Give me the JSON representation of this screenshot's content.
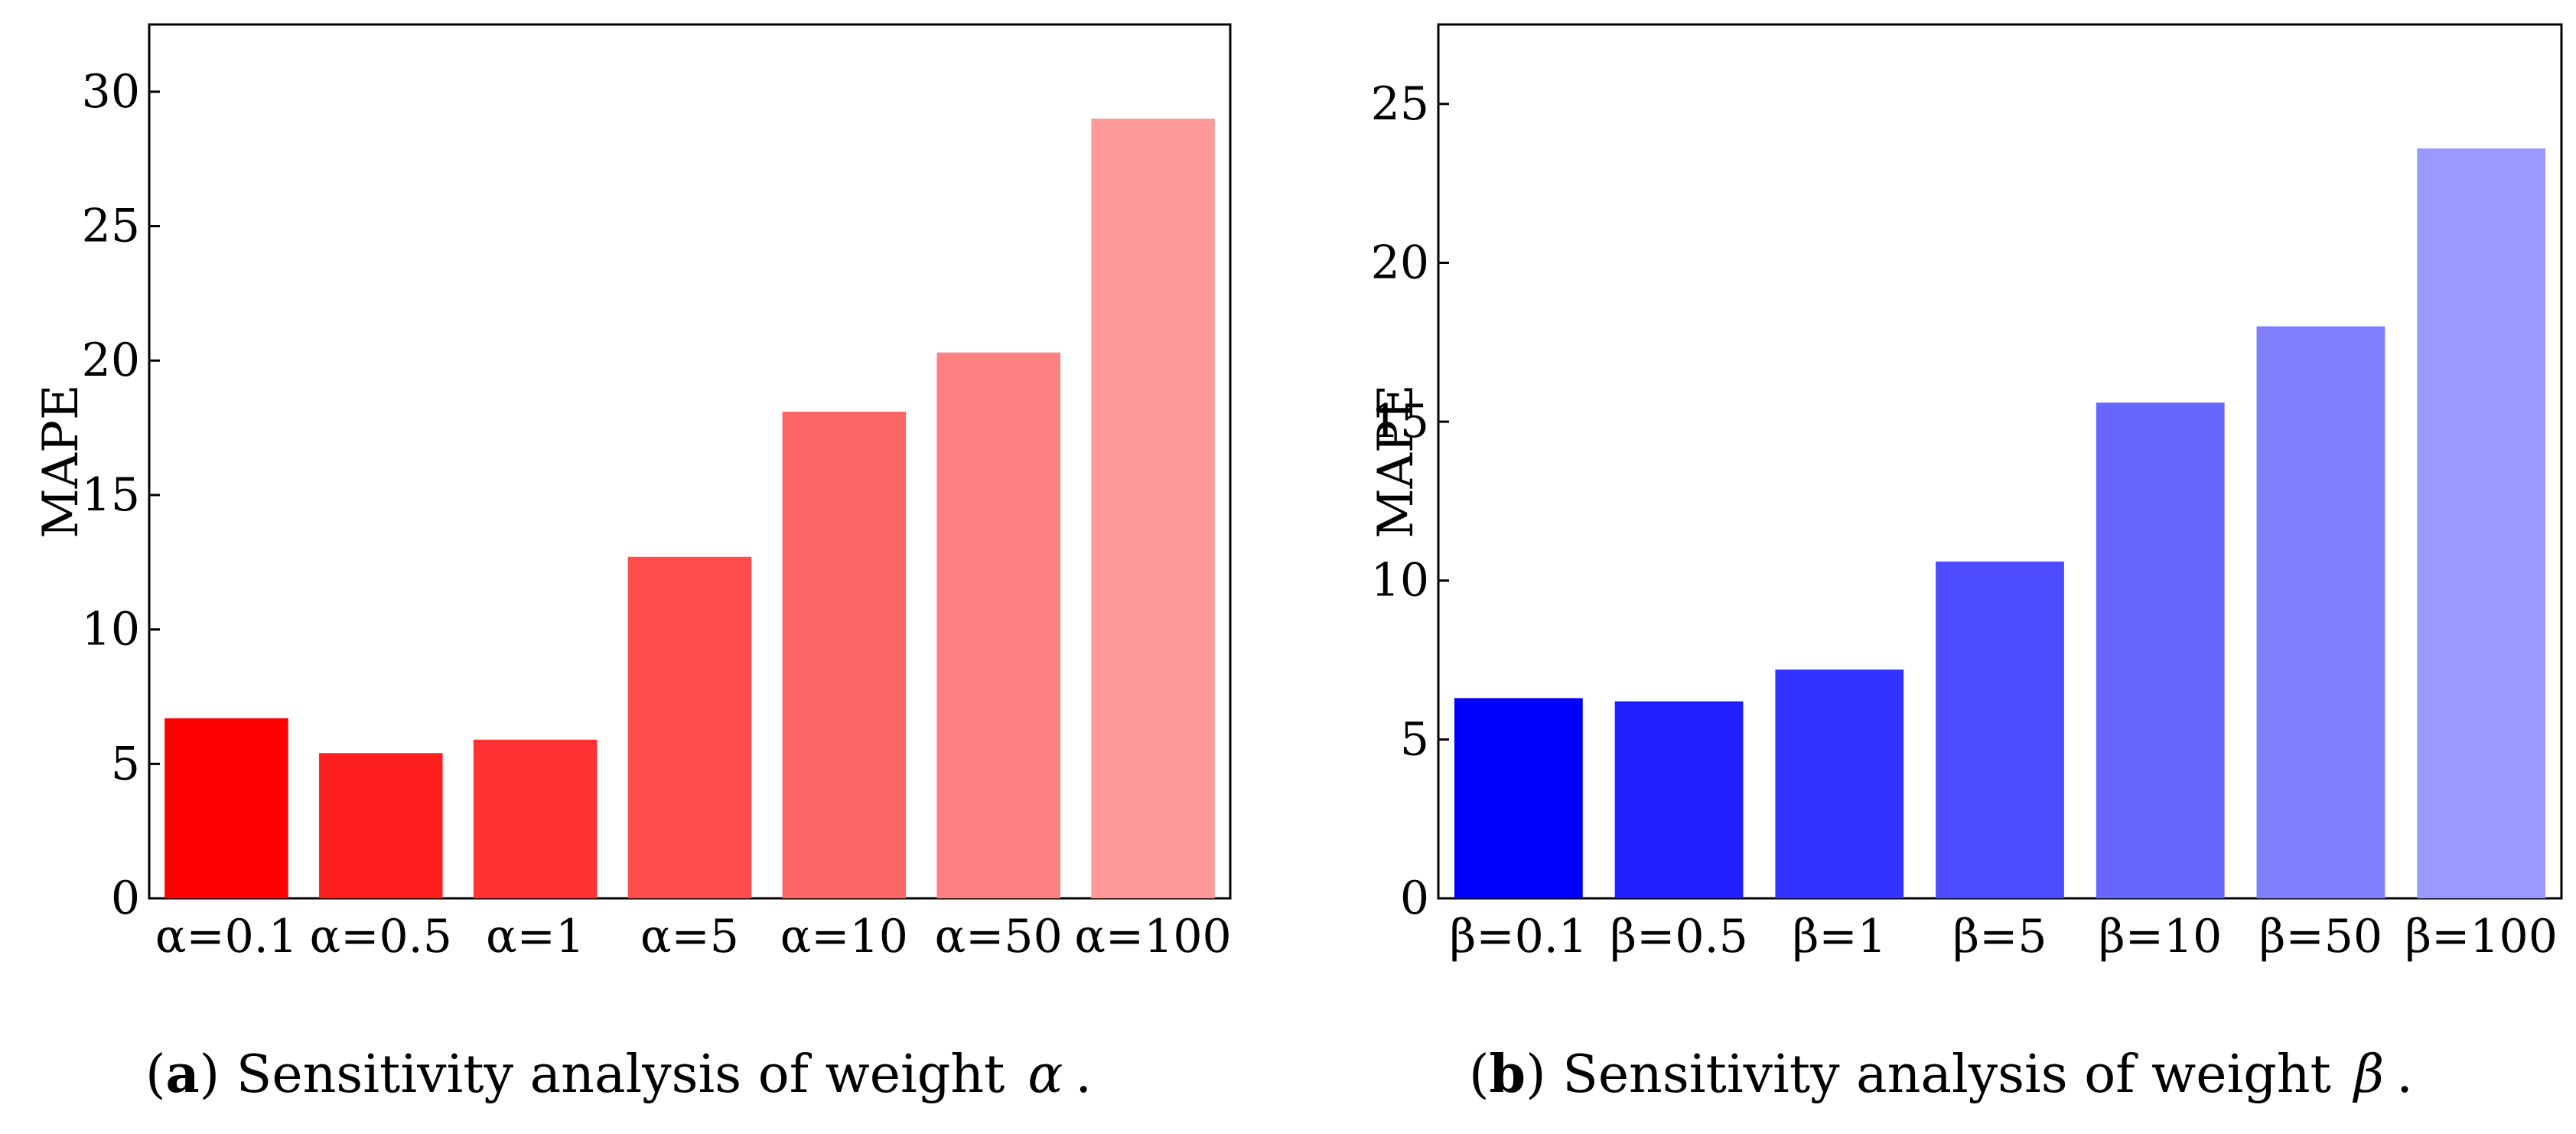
{
  "chart_data": [
    {
      "type": "bar",
      "caption_label": "a",
      "caption_text": "Sensitivity analysis of weight",
      "caption_symbol": "α",
      "caption_end": ".",
      "categories": [
        "α=0.1",
        "α=0.5",
        "α=1",
        "α=5",
        "α=10",
        "α=50",
        "α=100"
      ],
      "values": [
        6.7,
        5.4,
        5.9,
        12.7,
        18.1,
        20.3,
        29.0
      ],
      "bar_colors": [
        "#ff0000",
        "#ff1f1f",
        "#ff3333",
        "#ff4d4d",
        "#ff6666",
        "#ff8080",
        "#ff9999"
      ],
      "ylabel": "MAPE",
      "xlabel": "",
      "ylim": [
        0,
        32.5
      ],
      "yticks": [
        0,
        5,
        10,
        15,
        20,
        25,
        30
      ],
      "grid": false
    },
    {
      "type": "bar",
      "caption_label": "b",
      "caption_text": "Sensitivity analysis of weight",
      "caption_symbol": "β",
      "caption_end": ".",
      "categories": [
        "β=0.1",
        "β=0.5",
        "β=1",
        "β=5",
        "β=10",
        "β=50",
        "β=100"
      ],
      "values": [
        6.3,
        6.2,
        7.2,
        10.6,
        15.6,
        18.0,
        23.6
      ],
      "bar_colors": [
        "#0000ff",
        "#1f1fff",
        "#3333ff",
        "#4d4dff",
        "#6666ff",
        "#8080ff",
        "#9999ff"
      ],
      "ylabel": "MAPE",
      "xlabel": "",
      "ylim": [
        0,
        27.5
      ],
      "yticks": [
        0,
        5,
        10,
        15,
        20,
        25
      ],
      "grid": false
    }
  ]
}
